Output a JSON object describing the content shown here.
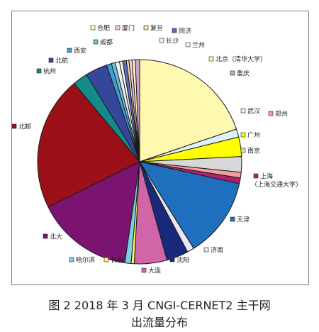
{
  "figure": {
    "caption_line1": "图 2  2018 年 3 月 CNGI-CERNET2 主干网",
    "caption_line2": "出流量分布"
  },
  "chart_data": {
    "type": "pie",
    "title": "",
    "slices": [
      {
        "label": "北京（清华大学）",
        "value": 20.0,
        "color": "#fff8b0"
      },
      {
        "label": "武汉",
        "value": 1.3,
        "color": "#dff2f6"
      },
      {
        "label": "广州",
        "value": 3.1,
        "color": "#ffff00"
      },
      {
        "label": "南京",
        "value": 2.5,
        "color": "#d8d8d8"
      },
      {
        "label": "郑州",
        "value": 0.9,
        "color": "#f0a0a0"
      },
      {
        "label": "上海",
        "sublabel": "（上海交通大学）",
        "value": 0.9,
        "color": "#b02070"
      },
      {
        "label": "天津",
        "value": 12.8,
        "color": "#1f6fbf"
      },
      {
        "label": "济南",
        "value": 1.1,
        "color": "#e8e8f4"
      },
      {
        "label": "沈阳",
        "value": 3.5,
        "color": "#1a2a7a"
      },
      {
        "label": "大连",
        "value": 5.2,
        "color": "#d066a8"
      },
      {
        "label": "长春",
        "value": 0.5,
        "color": "#fff060"
      },
      {
        "label": "哈尔滨",
        "value": 1.0,
        "color": "#7ad0e0"
      },
      {
        "label": "北大",
        "value": 15.5,
        "color": "#7a1470"
      },
      {
        "label": "北邮",
        "value": 21.4,
        "color": "#9a0f18"
      },
      {
        "label": "杭州",
        "value": 2.4,
        "color": "#148a8a"
      },
      {
        "label": "北航",
        "value": 3.5,
        "color": "#34479a"
      },
      {
        "label": "西安",
        "value": 0.8,
        "color": "#3f9fcf"
      },
      {
        "label": "成都",
        "value": 0.6,
        "color": "#68c5df"
      },
      {
        "label": "长沙",
        "value": 0.7,
        "color": "#f0f0f0"
      },
      {
        "label": "兰州",
        "value": 0.5,
        "color": "#fafafa"
      },
      {
        "label": "同济",
        "value": 0.6,
        "color": "#5c6ab8"
      },
      {
        "label": "复旦",
        "value": 0.4,
        "color": "#fadbb8"
      },
      {
        "label": "厦门",
        "value": 0.5,
        "color": "#f8c8d8"
      },
      {
        "label": "合肥",
        "value": 0.5,
        "color": "#fffac8"
      },
      {
        "label": "重庆",
        "value": 0.7,
        "color": "#d0a0c8"
      }
    ]
  }
}
